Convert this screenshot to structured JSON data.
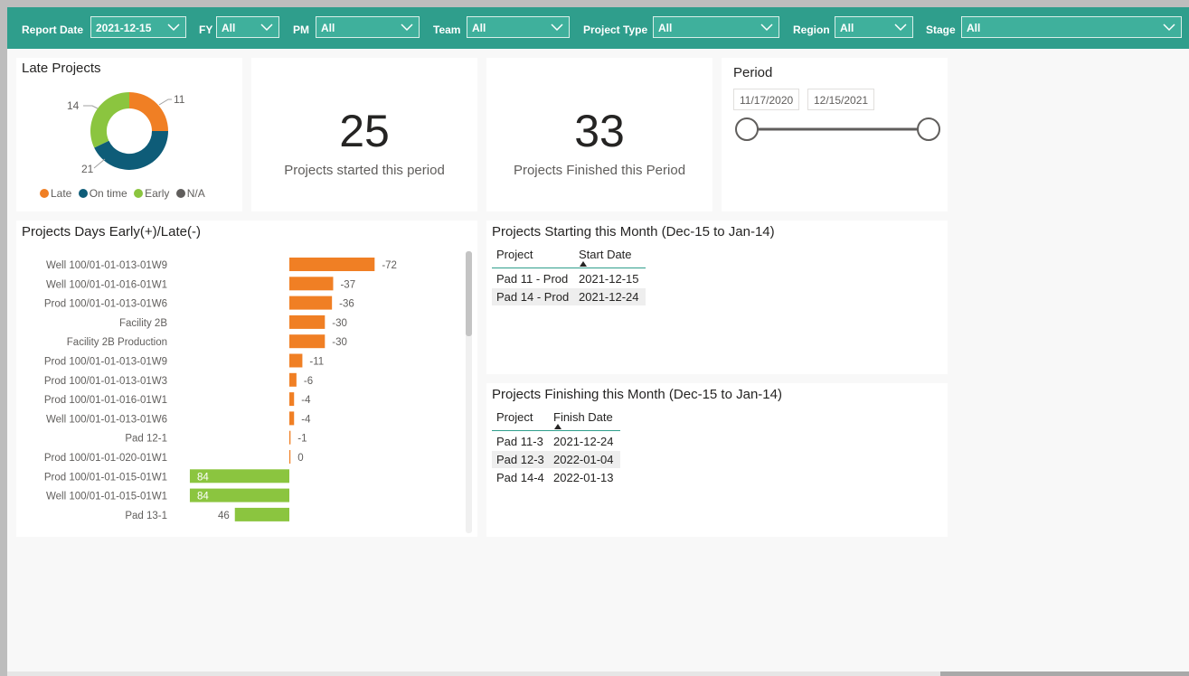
{
  "filters": [
    {
      "label": "Report Date",
      "value": "2021-12-15"
    },
    {
      "label": "FY",
      "value": "All"
    },
    {
      "label": "PM",
      "value": "All"
    },
    {
      "label": "Team",
      "value": "All"
    },
    {
      "label": "Project Type",
      "value": "All"
    },
    {
      "label": "Region",
      "value": "All"
    },
    {
      "label": "Stage",
      "value": "All"
    }
  ],
  "late_projects": {
    "title": "Late Projects",
    "labels": {
      "late": "11",
      "on_time": "21",
      "early": "14"
    },
    "legend": [
      {
        "name": "Late",
        "color": "#f07f24"
      },
      {
        "name": "On time",
        "color": "#0e5c78"
      },
      {
        "name": "Early",
        "color": "#8bc53f"
      },
      {
        "name": "N/A",
        "color": "#605e5c"
      }
    ]
  },
  "kpi_started": {
    "value": "25",
    "label": "Projects started this period"
  },
  "kpi_finished": {
    "value": "33",
    "label": "Projects Finished this Period"
  },
  "period": {
    "title": "Period",
    "start": "11/17/2020",
    "end": "12/15/2021"
  },
  "chart_data": {
    "type": "bar",
    "orientation": "horizontal",
    "title": "Projects Days Early(+)/Late(-)",
    "categories": [
      "Well 100/01-01-013-01W9",
      "Well 100/01-01-016-01W1",
      "Prod 100/01-01-013-01W6",
      "Facility 2B",
      "Facility 2B Production",
      "Prod 100/01-01-013-01W9",
      "Prod 100/01-01-013-01W3",
      "Prod 100/01-01-016-01W1",
      "Well 100/01-01-013-01W6",
      "Pad 12-1",
      "Prod 100/01-01-020-01W1",
      "Prod 100/01-01-015-01W1",
      "Well 100/01-01-015-01W1",
      "Pad 13-1"
    ],
    "values": [
      -72,
      -37,
      -36,
      -30,
      -30,
      -11,
      -6,
      -4,
      -4,
      -1,
      0,
      84,
      84,
      46
    ],
    "colors": {
      "late": "#f07f24",
      "early": "#8bc53f"
    }
  },
  "starting": {
    "title": "Projects Starting this Month (Dec-15 to Jan-14)",
    "headers": [
      "Project",
      "Start Date"
    ],
    "rows": [
      [
        "Pad 11 - Prod",
        "2021-12-15"
      ],
      [
        "Pad 14 - Prod",
        "2021-12-24"
      ]
    ]
  },
  "finishing": {
    "title": "Projects Finishing this Month (Dec-15 to Jan-14)",
    "headers": [
      "Project",
      "Finish Date"
    ],
    "rows": [
      [
        "Pad 11-3",
        "2021-12-24"
      ],
      [
        "Pad 12-3",
        "2022-01-04"
      ],
      [
        "Pad 14-4",
        "2022-01-13"
      ]
    ]
  }
}
